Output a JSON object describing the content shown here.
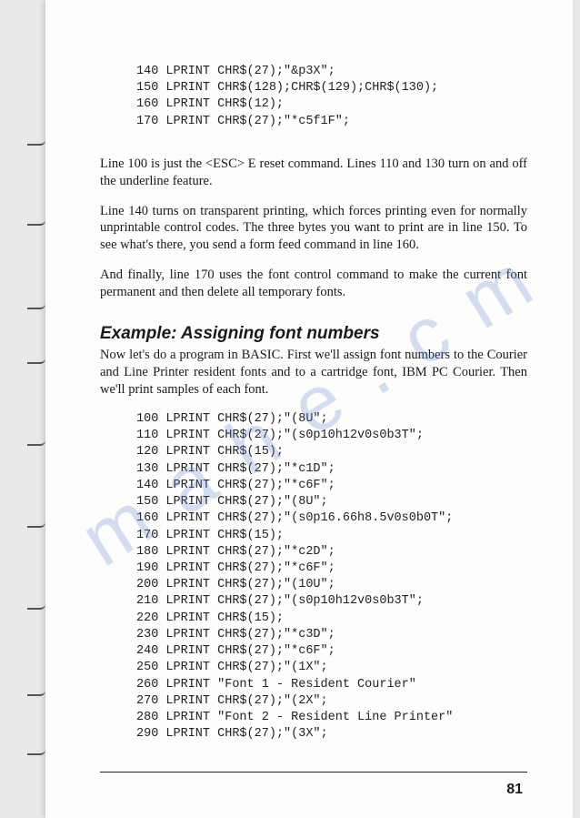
{
  "codeblock1": [
    "140 LPRINT CHR$(27);\"&p3X\";",
    "150 LPRINT CHR$(128);CHR$(129);CHR$(130);",
    "160 LPRINT CHR$(12);",
    "170 LPRINT CHR$(27);\"*c5f1F\";"
  ],
  "para1": "Line 100 is just the <ESC> E reset command. Lines 110 and 130 turn on and off the underline feature.",
  "para2": "Line 140 turns on transparent printing, which forces printing even for normally unprintable control codes. The three bytes you want to print are in line 150. To see what's there, you send a form feed command in line 160.",
  "para3": "And finally, line 170 uses the font control command to make the current font permanent and then delete all temporary fonts.",
  "heading": "Example: Assigning font numbers",
  "para4": "Now let's do a program in BASIC. First we'll assign font numbers to the Courier and Line Printer resident fonts and to a cartridge font, IBM PC Courier. Then we'll print samples of each font.",
  "codeblock2": [
    "100 LPRINT CHR$(27);\"(8U\";",
    "110 LPRINT CHR$(27);\"(s0p10h12v0s0b3T\";",
    "120 LPRINT CHR$(15);",
    "130 LPRINT CHR$(27);\"*c1D\";",
    "140 LPRINT CHR$(27);\"*c6F\";",
    "150 LPRINT CHR$(27);\"(8U\";",
    "160 LPRINT CHR$(27);\"(s0p16.66h8.5v0s0b0T\";",
    "170 LPRINT CHR$(15);",
    "180 LPRINT CHR$(27);\"*c2D\";",
    "190 LPRINT CHR$(27);\"*c6F\";",
    "200 LPRINT CHR$(27);\"(10U\";",
    "210 LPRINT CHR$(27);\"(s0p10h12v0s0b3T\";",
    "220 LPRINT CHR$(15);",
    "230 LPRINT CHR$(27);\"*c3D\";",
    "240 LPRINT CHR$(27);\"*c6F\";",
    "250 LPRINT CHR$(27);\"(1X\";",
    "260 LPRINT \"Font 1 - Resident Courier\"",
    "270 LPRINT CHR$(27);\"(2X\";",
    "280 LPRINT \"Font 2 - Resident Line Printer\"",
    "290 LPRINT CHR$(27);\"(3X\";"
  ],
  "pagenum": "81",
  "watermark": "m a       h   e . c   m",
  "tick_positions": [
    150,
    238,
    330,
    390,
    480,
    570,
    660,
    755,
    820
  ]
}
